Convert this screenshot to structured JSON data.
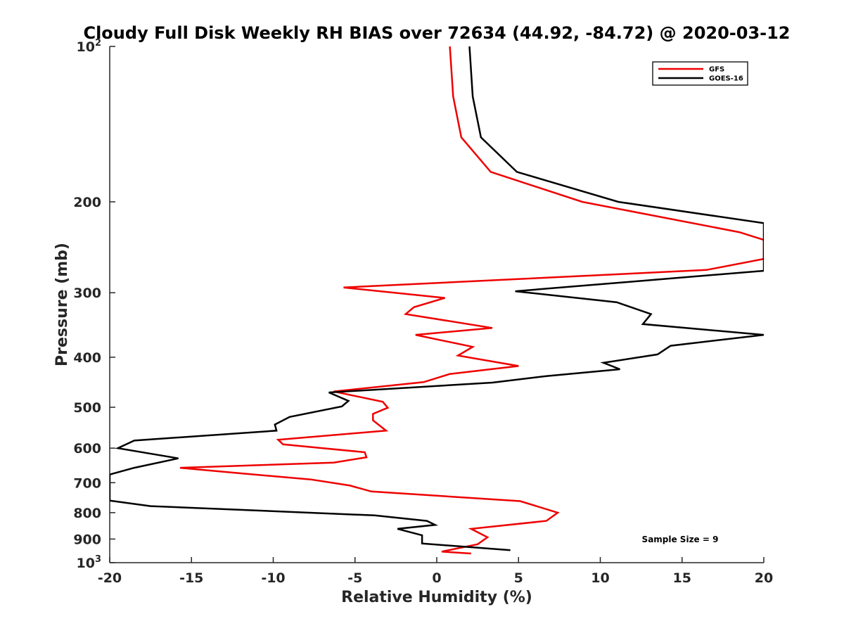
{
  "chart_data": {
    "type": "line",
    "title": "Cloudy Full Disk Weekly RH BIAS over 72634 (44.92, -84.72) @ 2020-03-12",
    "xlabel": "Relative Humidity (%)",
    "ylabel": "Pressure (mb)",
    "xlim": [
      -20,
      20
    ],
    "ylim": [
      100,
      1000
    ],
    "yscale": "log",
    "y_reversed": true,
    "grid": false,
    "legend_position": "top-right",
    "x_ticks": [
      "-20",
      "-15",
      "-10",
      "-5",
      "0",
      "5",
      "10",
      "15",
      "20"
    ],
    "y_ticks": [
      {
        "value": 100,
        "base": "10",
        "exp": "2"
      },
      {
        "value": 200,
        "label": "200"
      },
      {
        "value": 300,
        "label": "300"
      },
      {
        "value": 400,
        "label": "400"
      },
      {
        "value": 500,
        "label": "500"
      },
      {
        "value": 600,
        "label": "600"
      },
      {
        "value": 700,
        "label": "700"
      },
      {
        "value": 800,
        "label": "800"
      },
      {
        "value": 900,
        "label": "900"
      },
      {
        "value": 1000,
        "base": "10",
        "exp": "3"
      }
    ],
    "annotation": "Sample Size = 9",
    "series": [
      {
        "name": "GFS",
        "color": "#ee0000",
        "points": [
          [
            0.8,
            100
          ],
          [
            1.0,
            125
          ],
          [
            1.5,
            150
          ],
          [
            3.3,
            175
          ],
          [
            8.9,
            200
          ],
          [
            18.5,
            229
          ],
          [
            20.0,
            237
          ],
          [
            20.0,
            258
          ],
          [
            16.5,
            271
          ],
          [
            -5.7,
            293
          ],
          [
            0.5,
            307
          ],
          [
            -1.4,
            320
          ],
          [
            -1.9,
            330
          ],
          [
            3.4,
            351
          ],
          [
            -1.3,
            362
          ],
          [
            2.2,
            382
          ],
          [
            1.3,
            397
          ],
          [
            5.0,
            416
          ],
          [
            0.8,
            431
          ],
          [
            -0.8,
            447
          ],
          [
            -6.3,
            466
          ],
          [
            -3.3,
            488
          ],
          [
            -3.0,
            501
          ],
          [
            -3.9,
            515
          ],
          [
            -3.9,
            530
          ],
          [
            -3.1,
            555
          ],
          [
            -9.7,
            578
          ],
          [
            -9.4,
            590
          ],
          [
            -4.4,
            611
          ],
          [
            -4.3,
            625
          ],
          [
            -6.3,
            640
          ],
          [
            -15.7,
            655
          ],
          [
            -12.1,
            671
          ],
          [
            -7.7,
            690
          ],
          [
            -5.3,
            709
          ],
          [
            -4.0,
            728
          ],
          [
            5.1,
            760
          ],
          [
            7.4,
            800
          ],
          [
            6.7,
            830
          ],
          [
            2.1,
            860
          ],
          [
            3.1,
            893
          ],
          [
            2.5,
            921
          ],
          [
            0.3,
            952
          ],
          [
            2.1,
            960
          ]
        ]
      },
      {
        "name": "GOES-16",
        "color": "#000000",
        "points": [
          [
            2.0,
            100
          ],
          [
            2.2,
            125
          ],
          [
            2.7,
            150
          ],
          [
            4.9,
            175
          ],
          [
            11.1,
            200
          ],
          [
            20.0,
            220
          ],
          [
            20.0,
            272
          ],
          [
            4.8,
            298
          ],
          [
            11.0,
            313
          ],
          [
            13.1,
            330
          ],
          [
            12.6,
            345
          ],
          [
            20.0,
            362
          ],
          [
            14.3,
            380
          ],
          [
            13.5,
            395
          ],
          [
            10.2,
            410
          ],
          [
            11.2,
            422
          ],
          [
            6.7,
            435
          ],
          [
            3.4,
            448
          ],
          [
            -6.6,
            468
          ],
          [
            -5.4,
            486
          ],
          [
            -5.8,
            498
          ],
          [
            -9.0,
            522
          ],
          [
            -9.9,
            540
          ],
          [
            -9.8,
            555
          ],
          [
            -18.5,
            580
          ],
          [
            -19.5,
            600
          ],
          [
            -15.8,
            628
          ],
          [
            -18.5,
            655
          ],
          [
            -20.0,
            675
          ],
          [
            -20.0,
            758
          ],
          [
            -17.5,
            777
          ],
          [
            -3.8,
            810
          ],
          [
            -0.6,
            830
          ],
          [
            -0.1,
            845
          ],
          [
            -2.4,
            860
          ],
          [
            -0.9,
            885
          ],
          [
            -0.9,
            918
          ],
          [
            4.5,
            946
          ]
        ]
      }
    ]
  }
}
